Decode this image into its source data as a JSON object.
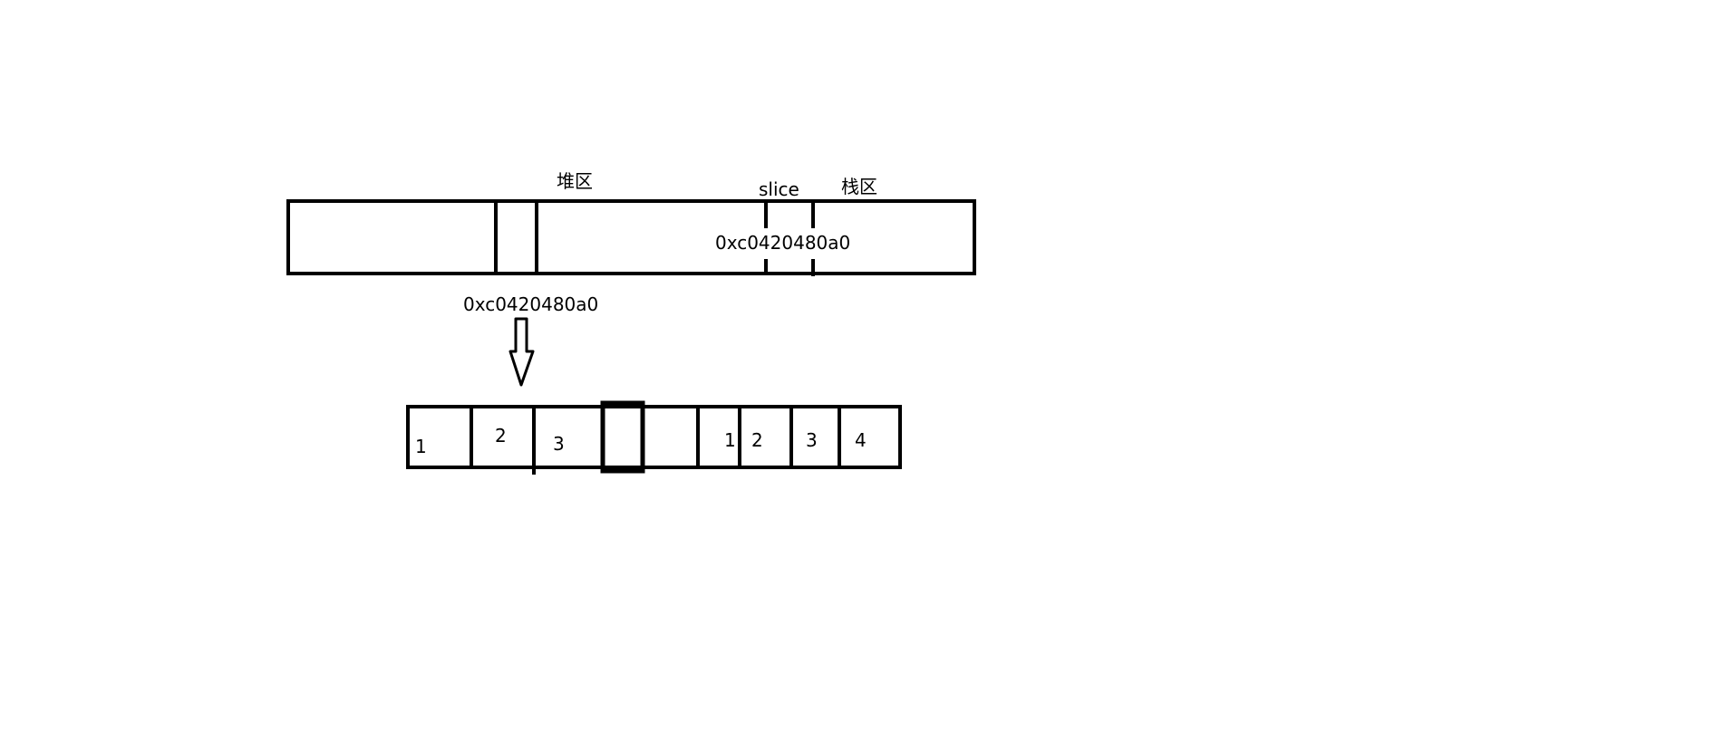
{
  "labels": {
    "heap": "堆区",
    "slice": "slice",
    "stack": "栈区",
    "stack_address": "0xc0420480a0",
    "heap_address": "0xc0420480a0"
  },
  "array_cells": [
    "1",
    "2",
    "3",
    "",
    "",
    "1",
    "2",
    "3",
    "4"
  ],
  "colors": {
    "stroke": "#000000",
    "background": "#ffffff"
  }
}
